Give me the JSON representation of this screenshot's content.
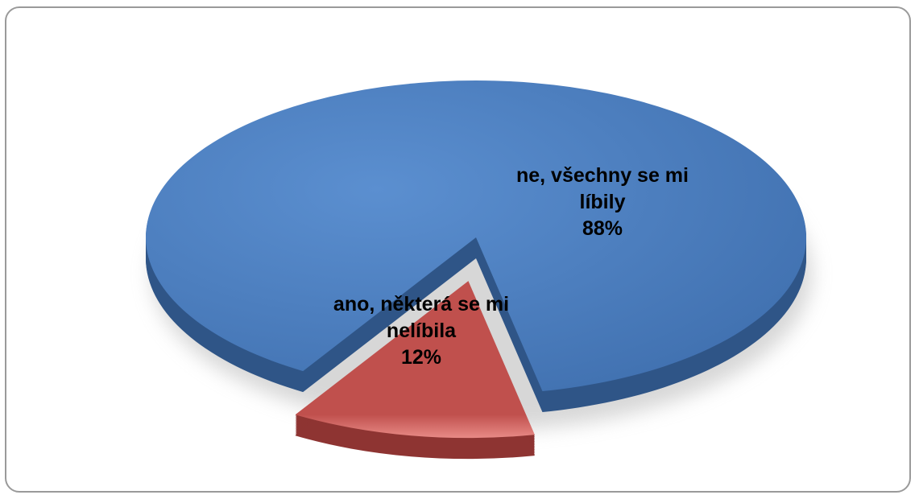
{
  "chart_data": {
    "type": "pie",
    "categories": [
      "ne, všechny se mi líbily",
      "ano, některá se mi nelíbila"
    ],
    "values": [
      88,
      12
    ],
    "value_labels": [
      "88%",
      "12%"
    ],
    "colors": [
      "#4f81bd",
      "#c0504d"
    ]
  }
}
